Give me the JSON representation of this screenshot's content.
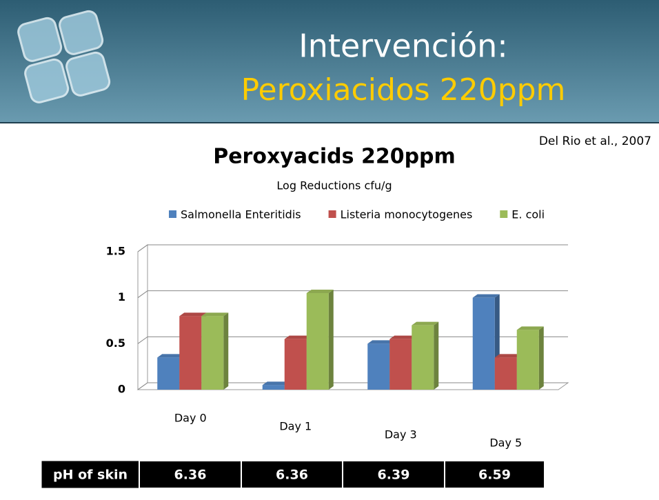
{
  "header": {
    "title": "Intervención:",
    "subtitle": "Peroxiacidos 220ppm"
  },
  "citation": "Del Rio et al., 2007",
  "chart_data": {
    "type": "bar",
    "title": "Peroxyacids 220ppm",
    "subtitle": "Log Reductions cfu/g",
    "categories": [
      "Day 0",
      "Day 1",
      "Day 3",
      "Day 5"
    ],
    "series": [
      {
        "name": "Salmonella Enteritidis",
        "color": "#4f81bd",
        "values": [
          0.35,
          0.05,
          0.5,
          1.0
        ]
      },
      {
        "name": "Listeria monocytogenes",
        "color": "#c0504d",
        "values": [
          0.8,
          0.55,
          0.55,
          0.35
        ]
      },
      {
        "name": "E. coli",
        "color": "#9bbb59",
        "values": [
          0.8,
          1.05,
          0.7,
          0.65
        ]
      }
    ],
    "ylim": [
      0,
      1.5
    ],
    "yticks": [
      0,
      0.5,
      1,
      1.5
    ],
    "grid": true
  },
  "ph_table": {
    "header": "pH of skin",
    "values": [
      "6.36",
      "6.36",
      "6.39",
      "6.59"
    ]
  }
}
